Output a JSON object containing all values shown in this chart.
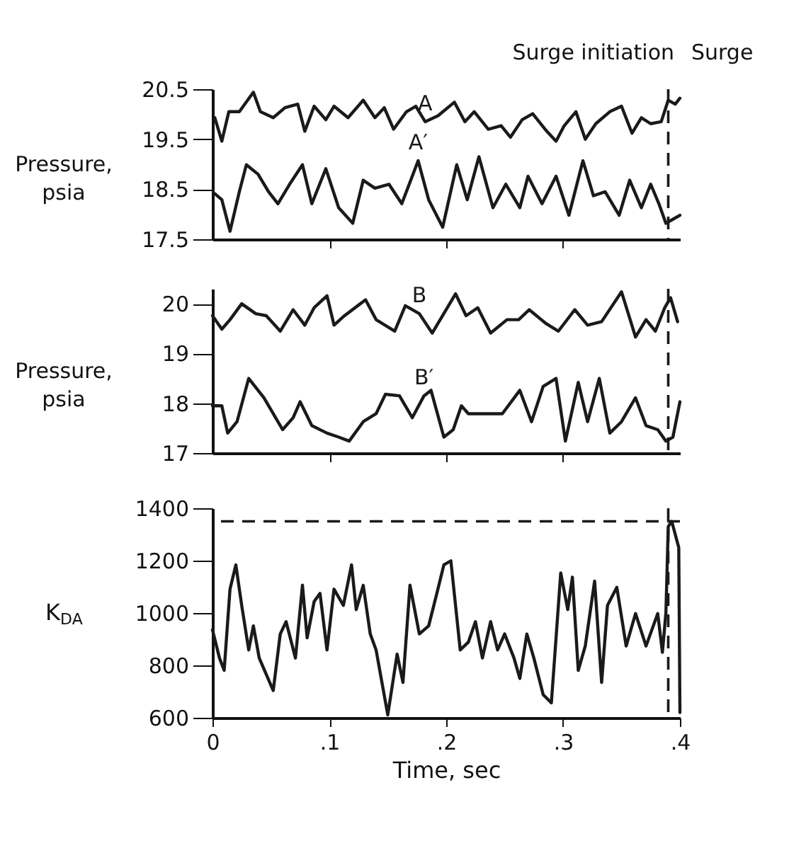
{
  "chart_data": [
    {
      "type": "line",
      "xlim": [
        0,
        0.4
      ],
      "xticks": [
        {
          "value": 0.1,
          "label": null
        },
        {
          "value": 0.2,
          "label": null
        },
        {
          "value": 0.3,
          "label": null
        }
      ],
      "ylim": [
        17.5,
        20.5
      ],
      "yticks": [
        17.5,
        18.5,
        19.5,
        20.5
      ],
      "tick_labels": "y",
      "ylabel": "Pressure, psia",
      "annotations": [
        "Surge initiation",
        "Surge"
      ],
      "ref_lines": [
        {
          "axis": "x",
          "value": 0.39,
          "line_style": "dashed"
        }
      ],
      "series": [
        {
          "name": "A",
          "color": "#1a1a1a",
          "x": [
            0.002,
            0.008,
            0.014,
            0.023,
            0.035,
            0.041,
            0.052,
            0.062,
            0.073,
            0.079,
            0.087,
            0.097,
            0.104,
            0.116,
            0.129,
            0.139,
            0.147,
            0.155,
            0.166,
            0.174,
            0.182,
            0.193,
            0.207,
            0.216,
            0.224,
            0.236,
            0.247,
            0.255,
            0.265,
            0.274,
            0.286,
            0.294,
            0.301,
            0.311,
            0.319,
            0.328,
            0.34,
            0.35,
            0.359,
            0.367,
            0.375,
            0.384,
            0.39,
            0.396,
            0.4
          ],
          "values": [
            19.93,
            19.46,
            20.05,
            20.05,
            20.44,
            20.05,
            19.93,
            20.13,
            20.2,
            19.66,
            20.16,
            19.89,
            20.16,
            19.93,
            20.28,
            19.93,
            20.13,
            19.7,
            20.05,
            20.16,
            19.85,
            19.97,
            20.24,
            19.85,
            20.05,
            19.7,
            19.77,
            19.54,
            19.89,
            20.01,
            19.66,
            19.46,
            19.77,
            20.05,
            19.5,
            19.81,
            20.05,
            20.16,
            19.62,
            19.93,
            19.81,
            19.85,
            20.28,
            20.2,
            20.32
          ]
        },
        {
          "name": "A′",
          "color": "#1a1a1a",
          "x": [
            0.002,
            0.008,
            0.015,
            0.023,
            0.029,
            0.039,
            0.048,
            0.056,
            0.066,
            0.077,
            0.085,
            0.097,
            0.108,
            0.12,
            0.129,
            0.139,
            0.151,
            0.162,
            0.176,
            0.185,
            0.197,
            0.209,
            0.218,
            0.228,
            0.24,
            0.251,
            0.263,
            0.27,
            0.282,
            0.294,
            0.305,
            0.317,
            0.326,
            0.336,
            0.348,
            0.357,
            0.367,
            0.375,
            0.382,
            0.388,
            0.394,
            0.4
          ],
          "values": [
            18.41,
            18.29,
            17.66,
            18.45,
            18.99,
            18.8,
            18.45,
            18.21,
            18.6,
            18.99,
            18.21,
            18.91,
            18.13,
            17.82,
            18.68,
            18.52,
            18.6,
            18.21,
            19.07,
            18.29,
            17.74,
            18.99,
            18.29,
            19.15,
            18.13,
            18.6,
            18.13,
            18.76,
            18.21,
            18.76,
            17.98,
            19.07,
            18.37,
            18.45,
            17.98,
            18.68,
            18.13,
            18.6,
            18.21,
            17.82,
            17.9,
            17.98
          ]
        }
      ]
    },
    {
      "type": "line",
      "xlim": [
        0,
        0.4
      ],
      "xticks": [
        {
          "value": 0.1,
          "label": null
        },
        {
          "value": 0.2,
          "label": null
        },
        {
          "value": 0.3,
          "label": null
        }
      ],
      "ylim": [
        17,
        20.3
      ],
      "yticks": [
        17,
        18,
        19,
        20
      ],
      "tick_labels": "y",
      "ylabel": "Pressure, psia",
      "ref_lines": [
        {
          "axis": "x",
          "value": 0.39,
          "line_style": "dashed"
        }
      ],
      "series": [
        {
          "name": "B",
          "color": "#1a1a1a",
          "x": [
            0,
            0.008,
            0.015,
            0.025,
            0.037,
            0.046,
            0.058,
            0.069,
            0.079,
            0.087,
            0.098,
            0.104,
            0.113,
            0.131,
            0.14,
            0.156,
            0.165,
            0.177,
            0.188,
            0.208,
            0.217,
            0.227,
            0.238,
            0.252,
            0.262,
            0.271,
            0.285,
            0.296,
            0.31,
            0.321,
            0.333,
            0.35,
            0.362,
            0.371,
            0.379,
            0.387,
            0.392,
            0.398
          ],
          "values": [
            19.76,
            19.49,
            19.68,
            20.0,
            19.8,
            19.76,
            19.45,
            19.88,
            19.57,
            19.92,
            20.16,
            19.57,
            19.76,
            20.08,
            19.68,
            19.45,
            19.96,
            19.8,
            19.41,
            20.2,
            19.76,
            19.92,
            19.41,
            19.68,
            19.68,
            19.88,
            19.61,
            19.45,
            19.88,
            19.57,
            19.64,
            20.24,
            19.33,
            19.68,
            19.45,
            19.92,
            20.12,
            19.64
          ]
        },
        {
          "name": "B′",
          "color": "#1a1a1a",
          "x": [
            0,
            0.008,
            0.013,
            0.021,
            0.031,
            0.044,
            0.06,
            0.069,
            0.075,
            0.085,
            0.098,
            0.108,
            0.117,
            0.129,
            0.14,
            0.148,
            0.16,
            0.171,
            0.181,
            0.187,
            0.198,
            0.206,
            0.213,
            0.219,
            0.233,
            0.248,
            0.263,
            0.273,
            0.283,
            0.294,
            0.302,
            0.313,
            0.321,
            0.331,
            0.34,
            0.35,
            0.362,
            0.371,
            0.381,
            0.388,
            0.394,
            0.4
          ],
          "values": [
            17.95,
            17.95,
            17.4,
            17.63,
            18.5,
            18.11,
            17.47,
            17.71,
            18.03,
            17.55,
            17.4,
            17.32,
            17.24,
            17.63,
            17.79,
            18.18,
            18.15,
            17.71,
            18.15,
            18.26,
            17.32,
            17.47,
            17.95,
            17.79,
            17.79,
            17.79,
            18.26,
            17.63,
            18.34,
            18.5,
            17.24,
            18.42,
            17.63,
            18.5,
            17.4,
            17.63,
            18.11,
            17.55,
            17.47,
            17.24,
            17.32,
            18.03
          ]
        }
      ]
    },
    {
      "type": "line",
      "xlim": [
        0,
        0.4
      ],
      "xticks": [
        0,
        {
          "value": 0.1,
          "label": ".1"
        },
        {
          "value": 0.2,
          "label": ".2"
        },
        {
          "value": 0.3,
          "label": ".3"
        },
        {
          "value": 0.4,
          "label": ".4"
        }
      ],
      "ylim": [
        600,
        1400
      ],
      "yticks": [
        600,
        800,
        1000,
        1200,
        1400
      ],
      "xlabel": "Time, sec",
      "ylabel": "K$_{DA}$",
      "ref_lines": [
        {
          "axis": "x",
          "value": 0.39,
          "line_style": "dashed"
        },
        {
          "axis": "y",
          "value": 1350,
          "line_style": "dashed"
        }
      ],
      "series": [
        {
          "color": "#1a1a1a",
          "x": [
            0,
            0.006,
            0.01,
            0.015,
            0.02,
            0.025,
            0.031,
            0.035,
            0.04,
            0.046,
            0.052,
            0.058,
            0.063,
            0.071,
            0.077,
            0.081,
            0.087,
            0.092,
            0.098,
            0.104,
            0.112,
            0.119,
            0.123,
            0.129,
            0.135,
            0.14,
            0.15,
            0.158,
            0.163,
            0.169,
            0.177,
            0.185,
            0.192,
            0.198,
            0.204,
            0.212,
            0.219,
            0.225,
            0.231,
            0.238,
            0.244,
            0.25,
            0.258,
            0.263,
            0.269,
            0.275,
            0.283,
            0.29,
            0.298,
            0.304,
            0.308,
            0.313,
            0.319,
            0.327,
            0.333,
            0.338,
            0.346,
            0.354,
            0.362,
            0.371,
            0.381,
            0.385,
            0.388,
            0.39,
            0.393,
            0.396,
            0.399,
            0.4
          ],
          "values": [
            936,
            828,
            781,
            1091,
            1184,
            1029,
            859,
            951,
            828,
            766,
            704,
            920,
            967,
            828,
            1106,
            905,
            1044,
            1075,
            859,
            1091,
            1029,
            1184,
            1013,
            1106,
            920,
            859,
            611,
            843,
            735,
            1106,
            920,
            951,
            1075,
            1184,
            1199,
            859,
            889,
            967,
            828,
            967,
            859,
            920,
            828,
            750,
            920,
            828,
            688,
            657,
            1153,
            1013,
            1137,
            781,
            874,
            1122,
            735,
            1029,
            1098,
            874,
            998,
            874,
            998,
            850,
            1000,
            1330,
            1350,
            1300,
            1250,
            620
          ]
        }
      ]
    }
  ]
}
